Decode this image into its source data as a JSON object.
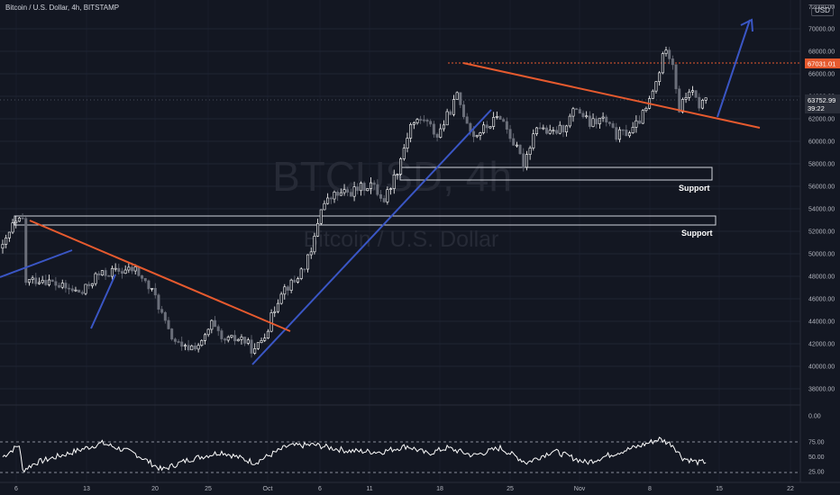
{
  "header": {
    "title": "Bitcoin / U.S. Dollar, 4h, BITSTAMP",
    "currency_badge": "USD",
    "axis_corner_label": "72000.00"
  },
  "watermark": {
    "symbol": "BTCUSD, 4h",
    "name": "Bitcoin / U.S. Dollar"
  },
  "price_badges": {
    "resistance_level": "67031.01",
    "last_price": "63752.99",
    "countdown": "39:22"
  },
  "annotations": {
    "support_upper": "Support",
    "support_lower": "Support"
  },
  "colors": {
    "background": "#131722",
    "candle_up": "#ffffff",
    "candle_down": "#6b6f7a",
    "trendline_red": "#e65a2e",
    "trendline_blue": "#3a56c5",
    "grid": "#1f2433",
    "axis_text": "#b2b5be"
  },
  "chart_data": [
    {
      "type": "candlestick",
      "title": "Bitcoin / U.S. Dollar, 4h, BITSTAMP",
      "x_ticks": [
        "6",
        "13",
        "20",
        "25",
        "Oct",
        "6",
        "11",
        "18",
        "25",
        "Nov",
        "8",
        "15",
        "22"
      ],
      "y_ticks": [
        70000,
        68000,
        66000,
        64000,
        62000,
        60000,
        58000,
        56000,
        54000,
        52000,
        50000,
        48000,
        46000,
        44000,
        42000,
        40000,
        38000
      ],
      "y_tick_labels": [
        "70000.00",
        "68000.00",
        "66000.00",
        "64000.00",
        "62000.00",
        "60000.00",
        "58000.00",
        "56000.00",
        "54000.00",
        "52000.00",
        "50000.00",
        "48000.00",
        "46000.00",
        "44000.00",
        "42000.00",
        "40000.00",
        "38000.00"
      ],
      "ylim": [
        37000,
        72500
      ],
      "close_path": [
        [
          0,
          50500
        ],
        [
          3,
          52500
        ],
        [
          6,
          53000
        ],
        [
          7,
          47500
        ],
        [
          12,
          47800
        ],
        [
          18,
          47000
        ],
        [
          24,
          46500
        ],
        [
          28,
          48000
        ],
        [
          33,
          48400
        ],
        [
          40,
          48600
        ],
        [
          46,
          46200
        ],
        [
          50,
          43000
        ],
        [
          54,
          41500
        ],
        [
          60,
          42000
        ],
        [
          63,
          43800
        ],
        [
          66,
          42200
        ],
        [
          72,
          42500
        ],
        [
          76,
          41300
        ],
        [
          80,
          43500
        ],
        [
          84,
          46800
        ],
        [
          88,
          47500
        ],
        [
          93,
          50000
        ],
        [
          96,
          54200
        ],
        [
          100,
          55200
        ],
        [
          105,
          55500
        ],
        [
          111,
          56200
        ],
        [
          115,
          54800
        ],
        [
          119,
          57500
        ],
        [
          123,
          61500
        ],
        [
          127,
          62000
        ],
        [
          131,
          60500
        ],
        [
          134,
          62200
        ],
        [
          137,
          64000
        ],
        [
          139,
          62500
        ],
        [
          142,
          60500
        ],
        [
          146,
          61300
        ],
        [
          150,
          62300
        ],
        [
          153,
          60500
        ],
        [
          157,
          58000
        ],
        [
          161,
          61500
        ],
        [
          165,
          60600
        ],
        [
          169,
          61200
        ],
        [
          173,
          63000
        ],
        [
          177,
          61500
        ],
        [
          181,
          62000
        ],
        [
          185,
          60500
        ],
        [
          190,
          61000
        ],
        [
          194,
          62800
        ],
        [
          197,
          65200
        ],
        [
          200,
          68500
        ],
        [
          202,
          67000
        ],
        [
          204,
          62800
        ],
        [
          207,
          64600
        ],
        [
          210,
          63200
        ],
        [
          212,
          63752
        ]
      ],
      "overlays": {
        "resistance_level": 67031.01,
        "support_zones": [
          [
            56500,
            57600
          ],
          [
            52600,
            53300
          ]
        ]
      }
    },
    {
      "type": "line",
      "title": "",
      "y_ticks": [
        0,
        25,
        50,
        75
      ],
      "y_tick_labels": [
        "0.00",
        "25.00",
        "50.00",
        "75.00"
      ],
      "ylim": [
        0,
        100
      ],
      "reference_lines": [
        30,
        70
      ],
      "values_path": [
        [
          0,
          50
        ],
        [
          5,
          70
        ],
        [
          6,
          27
        ],
        [
          10,
          40
        ],
        [
          20,
          56
        ],
        [
          30,
          73
        ],
        [
          40,
          55
        ],
        [
          48,
          28
        ],
        [
          56,
          45
        ],
        [
          66,
          58
        ],
        [
          76,
          40
        ],
        [
          86,
          68
        ],
        [
          94,
          70
        ],
        [
          104,
          60
        ],
        [
          114,
          58
        ],
        [
          122,
          68
        ],
        [
          128,
          55
        ],
        [
          134,
          65
        ],
        [
          142,
          52
        ],
        [
          150,
          65
        ],
        [
          158,
          40
        ],
        [
          166,
          60
        ],
        [
          176,
          40
        ],
        [
          184,
          55
        ],
        [
          192,
          68
        ],
        [
          198,
          80
        ],
        [
          202,
          70
        ],
        [
          205,
          48
        ],
        [
          210,
          40
        ],
        [
          212,
          42
        ]
      ]
    }
  ]
}
